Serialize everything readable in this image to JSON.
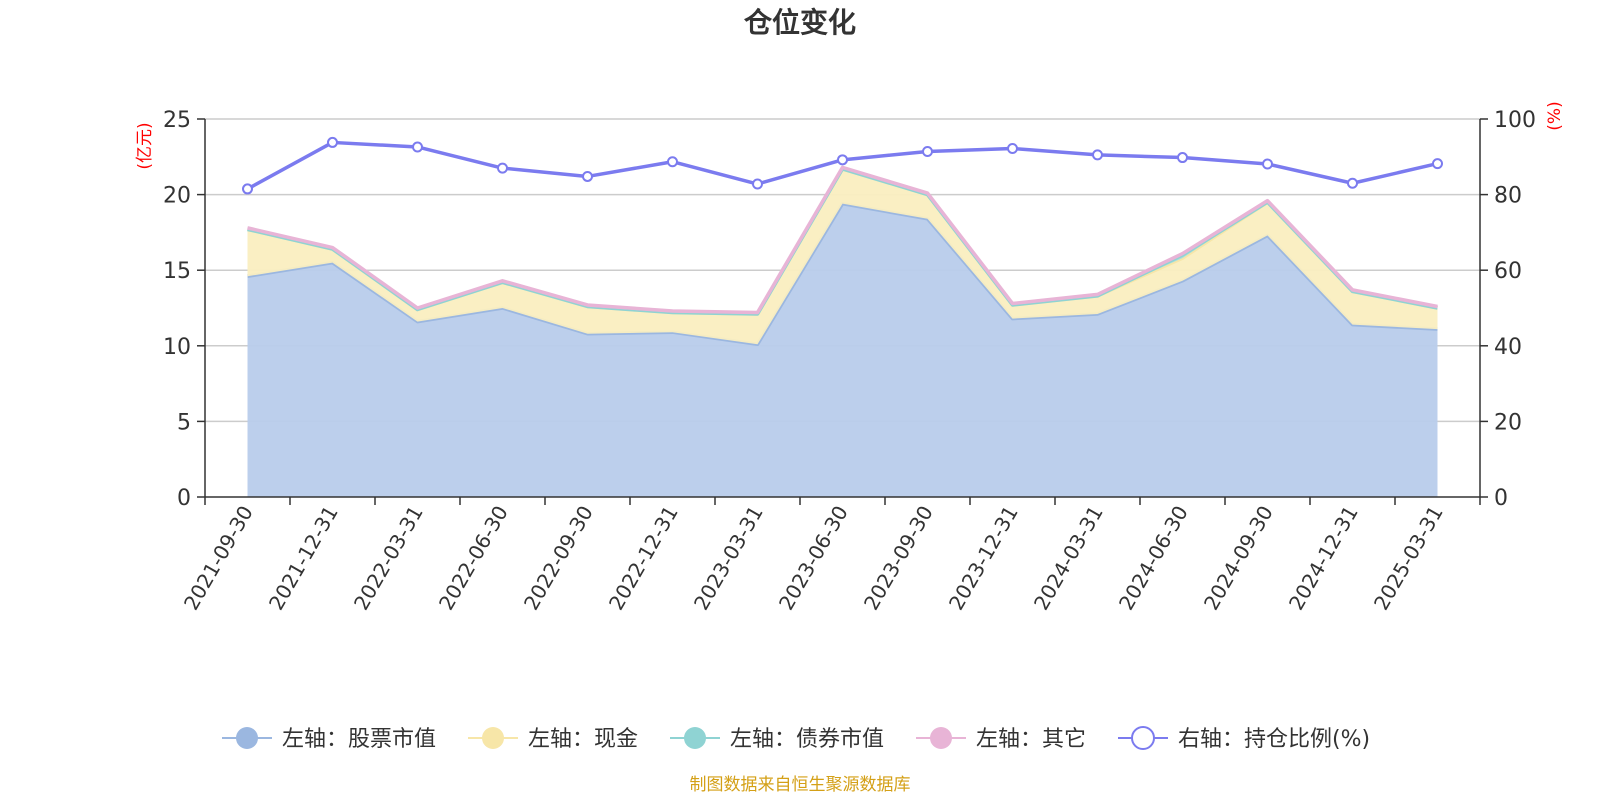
{
  "chart_data": {
    "type": "area",
    "title": "仓位变化",
    "left_axis_unit": "(亿元)",
    "right_axis_unit": "(%)",
    "left_ylim": [
      0,
      25
    ],
    "left_ticks": [
      "0",
      "5",
      "10",
      "15",
      "20",
      "25"
    ],
    "right_ylim": [
      0,
      100
    ],
    "right_ticks": [
      "0",
      "20",
      "40",
      "60",
      "80",
      "100"
    ],
    "categories": [
      "2021-09-30",
      "2021-12-31",
      "2022-03-31",
      "2022-06-30",
      "2022-09-30",
      "2022-12-31",
      "2023-03-31",
      "2023-06-30",
      "2023-09-30",
      "2023-12-31",
      "2024-03-31",
      "2024-06-30",
      "2024-09-30",
      "2024-12-31",
      "2025-03-31"
    ],
    "series": [
      {
        "name": "左轴：股票市值",
        "axis": "left",
        "color": "#9bb7e0",
        "fill": "#b8cceb",
        "values": [
          14.6,
          15.5,
          11.6,
          12.5,
          10.8,
          10.9,
          10.1,
          19.4,
          18.4,
          11.8,
          12.1,
          14.3,
          17.3,
          11.4,
          11.1
        ]
      },
      {
        "name": "左轴：现金",
        "axis": "left",
        "color": "#f7e6a8",
        "fill": "#faeec0",
        "values": [
          3.1,
          0.9,
          0.8,
          1.7,
          1.8,
          1.3,
          2.0,
          2.3,
          1.6,
          0.9,
          1.2,
          1.5,
          2.2,
          2.2,
          1.4
        ]
      },
      {
        "name": "左轴：债券市值",
        "axis": "left",
        "color": "#8fd3d3",
        "fill": "#a8dede",
        "values": [
          0,
          0,
          0,
          0,
          0,
          0,
          0,
          0,
          0,
          0,
          0,
          0.2,
          0,
          0,
          0
        ]
      },
      {
        "name": "左轴：其它",
        "axis": "left",
        "color": "#e8b4d6",
        "fill": "#efc8e2",
        "values": [
          0.1,
          0.1,
          0.1,
          0.1,
          0.1,
          0.1,
          0.1,
          0.1,
          0.1,
          0.1,
          0.1,
          0.1,
          0.1,
          0.1,
          0.1
        ]
      },
      {
        "name": "右轴：持仓比例(%)",
        "axis": "right",
        "color": "#7b7bef",
        "values": [
          81.5,
          93.8,
          92.6,
          87.0,
          84.8,
          88.7,
          82.8,
          89.2,
          91.4,
          92.2,
          90.5,
          89.8,
          88.1,
          83.0,
          88.2
        ]
      }
    ],
    "grid": true,
    "legend_position": "bottom"
  },
  "source_note": "制图数据来自恒生聚源数据库"
}
